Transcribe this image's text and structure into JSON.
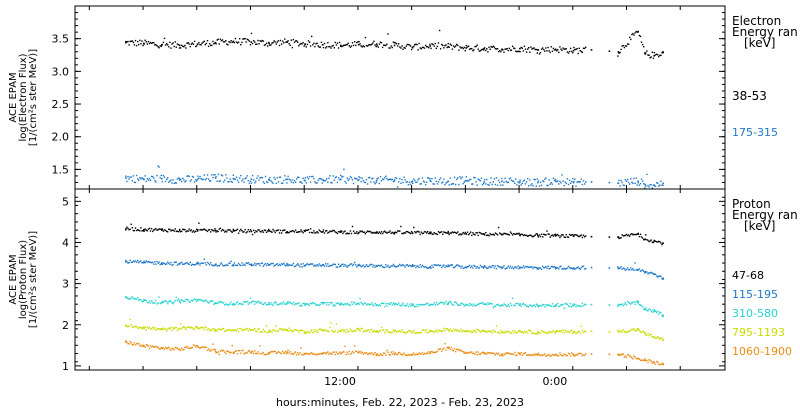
{
  "chart_data": [
    {
      "type": "scatter",
      "ylabel": [
        "ACE EPAM",
        "log(Electron Flux)",
        "[1/(cm²s ster MeV)]"
      ],
      "ylim": [
        1.2,
        4.0
      ],
      "yticks": [
        1.5,
        2.0,
        2.5,
        3.0,
        3.5
      ],
      "ytick_labels": [
        "1.5",
        "2.0",
        "2.5",
        "3.0",
        "3.5"
      ],
      "legend_title": [
        "Electron",
        "Energy ran",
        "[keV]"
      ],
      "legend_placement": "right",
      "series": [
        {
          "name": "38-53",
          "color": "#000000",
          "x": [
            0,
            1,
            2,
            3,
            4,
            5,
            6,
            7,
            8,
            9,
            10,
            11,
            12,
            13,
            14,
            15,
            16,
            17,
            18,
            19,
            20,
            21,
            22,
            23,
            24,
            25,
            26,
            27,
            27.5,
            28.6,
            29,
            29.5,
            30
          ],
          "y": [
            3.45,
            3.44,
            3.42,
            3.41,
            3.43,
            3.45,
            3.47,
            3.46,
            3.44,
            3.46,
            3.43,
            3.42,
            3.41,
            3.42,
            3.43,
            3.41,
            3.38,
            3.4,
            3.39,
            3.37,
            3.36,
            3.35,
            3.36,
            3.34,
            3.35,
            3.33,
            3.34,
            3.32,
            3.31,
            3.62,
            3.28,
            3.25,
            3.3
          ]
        },
        {
          "name": "175-315",
          "color": "#1e78c8",
          "x": [
            0,
            1,
            2,
            3,
            4,
            5,
            6,
            7,
            8,
            9,
            10,
            11,
            12,
            13,
            14,
            15,
            16,
            17,
            18,
            19,
            20,
            21,
            22,
            23,
            24,
            25,
            26,
            27,
            27.5,
            28.6,
            29,
            29.5,
            30
          ],
          "y": [
            1.38,
            1.36,
            1.37,
            1.35,
            1.36,
            1.38,
            1.37,
            1.36,
            1.35,
            1.36,
            1.34,
            1.35,
            1.36,
            1.35,
            1.34,
            1.35,
            1.33,
            1.34,
            1.33,
            1.34,
            1.32,
            1.33,
            1.32,
            1.31,
            1.33,
            1.31,
            1.32,
            1.31,
            1.3,
            1.33,
            1.28,
            1.27,
            1.3
          ]
        }
      ]
    },
    {
      "type": "scatter",
      "xlabel": "hours:minutes, Feb. 22, 2023 - Feb. 23, 2023",
      "xticks": [
        12,
        24
      ],
      "xtick_labels": [
        "12:00",
        "0:00"
      ],
      "xlim": [
        -2.8,
        33.5
      ],
      "ylabel": [
        "ACE EPAM",
        "log(Proton Flux)",
        "[1/(cm²s ster MeV)]"
      ],
      "ylim": [
        0.9,
        5.3
      ],
      "yticks": [
        1,
        2,
        3,
        4,
        5
      ],
      "ytick_labels": [
        "1",
        "2",
        "3",
        "4",
        "5"
      ],
      "legend_title": [
        "Proton",
        "Energy ran",
        "[keV]"
      ],
      "legend_placement": "right",
      "series": [
        {
          "name": "47-68",
          "color": "#000000",
          "x": [
            0,
            1,
            2,
            3,
            4,
            5,
            6,
            7,
            8,
            9,
            10,
            11,
            12,
            13,
            14,
            15,
            16,
            17,
            18,
            19,
            20,
            21,
            22,
            23,
            24,
            25,
            26,
            27,
            27.5,
            28.6,
            29,
            29.5,
            30
          ],
          "y": [
            4.35,
            4.33,
            4.32,
            4.31,
            4.3,
            4.31,
            4.3,
            4.29,
            4.3,
            4.28,
            4.29,
            4.28,
            4.27,
            4.26,
            4.27,
            4.26,
            4.25,
            4.24,
            4.25,
            4.23,
            4.22,
            4.21,
            4.2,
            4.19,
            4.18,
            4.17,
            4.16,
            4.15,
            4.15,
            4.22,
            4.1,
            4.05,
            4.0
          ]
        },
        {
          "name": "115-195",
          "color": "#1e78c8",
          "x": [
            0,
            1,
            2,
            3,
            4,
            5,
            6,
            7,
            8,
            9,
            10,
            11,
            12,
            13,
            14,
            15,
            16,
            17,
            18,
            19,
            20,
            21,
            22,
            23,
            24,
            25,
            26,
            27,
            27.5,
            28.6,
            29,
            29.5,
            30
          ],
          "y": [
            3.55,
            3.53,
            3.52,
            3.5,
            3.5,
            3.49,
            3.48,
            3.49,
            3.47,
            3.48,
            3.46,
            3.47,
            3.45,
            3.46,
            3.44,
            3.45,
            3.44,
            3.43,
            3.44,
            3.42,
            3.43,
            3.41,
            3.42,
            3.4,
            3.41,
            3.4,
            3.41,
            3.4,
            3.39,
            3.35,
            3.3,
            3.25,
            3.15
          ]
        },
        {
          "name": "310-580",
          "color": "#28d2d2",
          "x": [
            0,
            1,
            2,
            3,
            4,
            5,
            6,
            7,
            8,
            9,
            10,
            11,
            12,
            13,
            14,
            15,
            16,
            17,
            18,
            19,
            20,
            21,
            22,
            23,
            24,
            25,
            26,
            27,
            27.5,
            28.6,
            29,
            29.5,
            30
          ],
          "y": [
            2.7,
            2.6,
            2.55,
            2.58,
            2.62,
            2.55,
            2.53,
            2.56,
            2.52,
            2.55,
            2.5,
            2.53,
            2.51,
            2.54,
            2.5,
            2.52,
            2.49,
            2.51,
            2.55,
            2.5,
            2.52,
            2.49,
            2.5,
            2.48,
            2.5,
            2.49,
            2.51,
            2.5,
            2.5,
            2.55,
            2.4,
            2.35,
            2.25
          ]
        },
        {
          "name": "795-1193",
          "color": "#c8dc00",
          "x": [
            0,
            1,
            2,
            3,
            4,
            5,
            6,
            7,
            8,
            9,
            10,
            11,
            12,
            13,
            14,
            15,
            16,
            17,
            18,
            19,
            20,
            21,
            22,
            23,
            24,
            25,
            26,
            27,
            27.5,
            28.6,
            29,
            29.5,
            30
          ],
          "y": [
            2.0,
            1.95,
            1.9,
            1.92,
            1.95,
            1.9,
            1.88,
            1.9,
            1.86,
            1.9,
            1.85,
            1.88,
            1.86,
            1.9,
            1.85,
            1.87,
            1.84,
            1.86,
            1.9,
            1.86,
            1.87,
            1.84,
            1.86,
            1.83,
            1.85,
            1.84,
            1.86,
            1.85,
            1.85,
            1.9,
            1.8,
            1.72,
            1.65
          ]
        },
        {
          "name": "1060-1900",
          "color": "#eb8c14",
          "x": [
            0,
            1,
            2,
            3,
            4,
            5,
            6,
            7,
            8,
            9,
            10,
            11,
            12,
            13,
            14,
            15,
            16,
            17,
            18,
            19,
            20,
            21,
            22,
            23,
            24,
            25,
            26,
            27,
            27.5,
            28.6,
            29,
            29.5,
            30
          ],
          "y": [
            1.6,
            1.5,
            1.45,
            1.42,
            1.5,
            1.38,
            1.35,
            1.36,
            1.32,
            1.35,
            1.3,
            1.33,
            1.32,
            1.35,
            1.3,
            1.32,
            1.3,
            1.33,
            1.45,
            1.33,
            1.32,
            1.3,
            1.31,
            1.29,
            1.3,
            1.29,
            1.31,
            1.3,
            1.3,
            1.2,
            1.15,
            1.1,
            1.05
          ]
        }
      ]
    }
  ]
}
